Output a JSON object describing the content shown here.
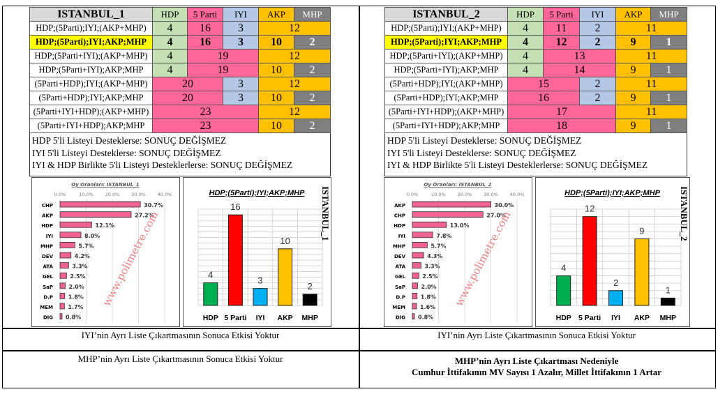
{
  "headers": [
    "HDP",
    "5 Parti",
    "IYI",
    "AKP",
    "MHP"
  ],
  "colors": {
    "HDP": "#c5e0b4",
    "5 Parti": "#ff6699",
    "IYI": "#b4c7e7",
    "AKP": "#ffc000",
    "MHP": "#7f7f7f"
  },
  "panels": [
    {
      "title": "ISTANBUL_1",
      "rows": [
        {
          "label": "HDP;(5Parti);IYI;(AKP+MHP)",
          "cells": [
            {
              "v": "4",
              "span": 1,
              "c": "HDP"
            },
            {
              "v": "16",
              "span": 1,
              "c": "5 Parti"
            },
            {
              "v": "3",
              "span": 1,
              "c": "IYI"
            },
            {
              "v": "12",
              "span": 2,
              "c": "AKP"
            }
          ]
        },
        {
          "label": "HDP;(5Parti);IYI;AKP;MHP",
          "highlight": true,
          "cells": [
            {
              "v": "4",
              "span": 1,
              "c": "HDP"
            },
            {
              "v": "16",
              "span": 1,
              "c": "5 Parti"
            },
            {
              "v": "3",
              "span": 1,
              "c": "IYI"
            },
            {
              "v": "10",
              "span": 1,
              "c": "AKP"
            },
            {
              "v": "2",
              "span": 1,
              "c": "MHP"
            }
          ]
        },
        {
          "label": "HDP;(5Parti+IYI);(AKP+MHP)",
          "cells": [
            {
              "v": "4",
              "span": 1,
              "c": "HDP"
            },
            {
              "v": "19",
              "span": 2,
              "c": "5 Parti"
            },
            {
              "v": "12",
              "span": 2,
              "c": "AKP"
            }
          ]
        },
        {
          "label": "HDP;(5Parti+IYI);AKP;MHP",
          "cells": [
            {
              "v": "4",
              "span": 1,
              "c": "HDP"
            },
            {
              "v": "19",
              "span": 2,
              "c": "5 Parti"
            },
            {
              "v": "10",
              "span": 1,
              "c": "AKP"
            },
            {
              "v": "2",
              "span": 1,
              "c": "MHP"
            }
          ]
        },
        {
          "label": "(5Parti+HDP);IYI;(AKP+MHP)",
          "cells": [
            {
              "v": "20",
              "span": 2,
              "c": "5 Parti"
            },
            {
              "v": "3",
              "span": 1,
              "c": "IYI"
            },
            {
              "v": "12",
              "span": 2,
              "c": "AKP"
            }
          ]
        },
        {
          "label": "(5Parti+HDP);IYI;AKP;MHP",
          "cells": [
            {
              "v": "20",
              "span": 2,
              "c": "5 Parti"
            },
            {
              "v": "3",
              "span": 1,
              "c": "IYI"
            },
            {
              "v": "10",
              "span": 1,
              "c": "AKP"
            },
            {
              "v": "2",
              "span": 1,
              "c": "MHP"
            }
          ]
        },
        {
          "label": "(5Parti+IYI+HDP);(AKP+MHP)",
          "cells": [
            {
              "v": "23",
              "span": 3,
              "c": "5 Parti"
            },
            {
              "v": "12",
              "span": 2,
              "c": "AKP"
            }
          ]
        },
        {
          "label": "(5Parti+IYI+HDP);AKP;MHP",
          "cells": [
            {
              "v": "23",
              "span": 3,
              "c": "5 Parti"
            },
            {
              "v": "10",
              "span": 1,
              "c": "AKP"
            },
            {
              "v": "2",
              "span": 1,
              "c": "MHP"
            }
          ]
        }
      ],
      "notes": [
        "HDP 5'li Listeyi Desteklerse: SONUÇ DEĞİŞMEZ",
        "IYI 5'li Listeyi Desteklerse: SONUÇ DEĞİŞMEZ",
        "IYI & HDP Birlikte 5'li Listeyi Desteklerlerse: SONUÇ DEĞİŞMEZ"
      ],
      "footer1": "IYI’nin Ayrı Liste Çıkartmasının Sonuca Etkisi Yoktur",
      "footer2": [
        "MHP’nin Ayrı Liste Çıkartmasının Sonuca Etkisi Yoktur"
      ],
      "footer2_bold": false
    },
    {
      "title": "ISTANBUL_2",
      "rows": [
        {
          "label": "HDP;(5Parti);IYI;(AKP+MHP)",
          "cells": [
            {
              "v": "4",
              "span": 1,
              "c": "HDP"
            },
            {
              "v": "11",
              "span": 1,
              "c": "5 Parti"
            },
            {
              "v": "2",
              "span": 1,
              "c": "IYI"
            },
            {
              "v": "11",
              "span": 2,
              "c": "AKP"
            }
          ]
        },
        {
          "label": "HDP;(5Parti);IYI;AKP;MHP",
          "highlight": true,
          "cells": [
            {
              "v": "4",
              "span": 1,
              "c": "HDP"
            },
            {
              "v": "12",
              "span": 1,
              "c": "5 Parti"
            },
            {
              "v": "2",
              "span": 1,
              "c": "IYI"
            },
            {
              "v": "9",
              "span": 1,
              "c": "AKP"
            },
            {
              "v": "1",
              "span": 1,
              "c": "MHP"
            }
          ]
        },
        {
          "label": "HDP;(5Parti+IYI);(AKP+MHP)",
          "cells": [
            {
              "v": "4",
              "span": 1,
              "c": "HDP"
            },
            {
              "v": "13",
              "span": 2,
              "c": "5 Parti"
            },
            {
              "v": "11",
              "span": 2,
              "c": "AKP"
            }
          ]
        },
        {
          "label": "HDP;(5Parti+IYI);AKP;MHP",
          "cells": [
            {
              "v": "4",
              "span": 1,
              "c": "HDP"
            },
            {
              "v": "14",
              "span": 2,
              "c": "5 Parti"
            },
            {
              "v": "9",
              "span": 1,
              "c": "AKP"
            },
            {
              "v": "1",
              "span": 1,
              "c": "MHP"
            }
          ]
        },
        {
          "label": "(5Parti+HDP);IYI;(AKP+MHP)",
          "cells": [
            {
              "v": "15",
              "span": 2,
              "c": "5 Parti"
            },
            {
              "v": "2",
              "span": 1,
              "c": "IYI"
            },
            {
              "v": "11",
              "span": 2,
              "c": "AKP"
            }
          ]
        },
        {
          "label": "(5Parti+HDP);IYI;AKP;MHP",
          "cells": [
            {
              "v": "16",
              "span": 2,
              "c": "5 Parti"
            },
            {
              "v": "2",
              "span": 1,
              "c": "IYI"
            },
            {
              "v": "9",
              "span": 1,
              "c": "AKP"
            },
            {
              "v": "1",
              "span": 1,
              "c": "MHP"
            }
          ]
        },
        {
          "label": "(5Parti+IYI+HDP);(AKP+MHP)",
          "cells": [
            {
              "v": "17",
              "span": 3,
              "c": "5 Parti"
            },
            {
              "v": "11",
              "span": 2,
              "c": "AKP"
            }
          ]
        },
        {
          "label": "(5Parti+IYI+HDP);AKP;MHP",
          "cells": [
            {
              "v": "18",
              "span": 3,
              "c": "5 Parti"
            },
            {
              "v": "9",
              "span": 1,
              "c": "AKP"
            },
            {
              "v": "1",
              "span": 1,
              "c": "MHP"
            }
          ]
        }
      ],
      "notes": [
        "HDP 5'li Listeyi Desteklerse: SONUÇ DEĞİŞMEZ",
        "IYI 5'li Listeyi Desteklerse: SONUÇ DEĞİŞMEZ",
        "IYI & HDP Birlikte 5'li Listeyi Desteklerlerse: SONUÇ DEĞİŞMEZ"
      ],
      "footer1": "IYI’nin Ayrı Liste Çıkartmasının Sonuca Etkisi Yoktur",
      "footer2": [
        "MHP’nin Ayrı Liste Çıkartması Nedeniyle",
        "Cumhur İttifakının MV Sayısı 1 Azalır, Millet İttifakının 1 Artar"
      ],
      "footer2_bold": true
    }
  ],
  "watermark": "www.polimetre.com",
  "chart_data": [
    {
      "type": "bar",
      "title": "Oy Oranları: ISTANBUL_1",
      "xlim": [
        0,
        40
      ],
      "ticks": [
        "0.0%",
        "10.0%",
        "20.0%",
        "30.0%",
        "40.0%"
      ],
      "categories": [
        "CHP",
        "AKP",
        "HDP",
        "IYI",
        "MHP",
        "DEV",
        "ATA",
        "GEL",
        "SaP",
        "D.P",
        "MEM",
        "DIG"
      ],
      "values": [
        30.7,
        27.2,
        12.1,
        8.0,
        5.7,
        4.2,
        3.3,
        2.5,
        2.0,
        1.8,
        1.7,
        0.8
      ],
      "labels": [
        "30.7%",
        "27.2%",
        "12.1%",
        "8.0%",
        "5.7%",
        "4.2%",
        "3.3%",
        "2.5%",
        "2.0%",
        "1.8%",
        "1.7%",
        "0.8%"
      ]
    },
    {
      "type": "bar",
      "title": "HDP;(5Parti);IYI;AKP;MHP",
      "side_label": "ISTANBUL_1",
      "ylim": [
        0,
        17
      ],
      "categories": [
        "HDP",
        "5 Parti",
        "IYI",
        "AKP",
        "MHP"
      ],
      "values": [
        4,
        16,
        3,
        10,
        2
      ],
      "colors": [
        "#00b050",
        "#ff0000",
        "#00b0f0",
        "#ffc000",
        "#000000"
      ]
    },
    {
      "type": "bar",
      "title": "Oy Oranları: ISTANBUL_2",
      "xlim": [
        0,
        40
      ],
      "ticks": [
        "0.0%",
        "10.0%",
        "20.0%",
        "30.0%",
        "40.0%"
      ],
      "categories": [
        "AKP",
        "CHP",
        "HDP",
        "IYI",
        "MHP",
        "DEV",
        "ATA",
        "GEL",
        "SaP",
        "D.P",
        "MEM",
        "DIG"
      ],
      "values": [
        30.0,
        27.0,
        13.0,
        7.8,
        5.7,
        4.3,
        3.3,
        2.5,
        2.0,
        1.8,
        1.6,
        0.8
      ],
      "labels": [
        "30.0%",
        "27.0%",
        "13.0%",
        "7.8%",
        "5.7%",
        "4.3%",
        "3.3%",
        "2.5%",
        "2.0%",
        "1.8%",
        "1.6%",
        "0.8%"
      ]
    },
    {
      "type": "bar",
      "title": "HDP;(5Parti);IYI;AKP;MHP",
      "side_label": "ISTANBUL_2",
      "ylim": [
        0,
        13
      ],
      "categories": [
        "HDP",
        "5 Parti",
        "IYI",
        "AKP",
        "MHP"
      ],
      "values": [
        4,
        12,
        2,
        9,
        1
      ],
      "colors": [
        "#00b050",
        "#ff0000",
        "#00b0f0",
        "#ffc000",
        "#000000"
      ]
    }
  ]
}
